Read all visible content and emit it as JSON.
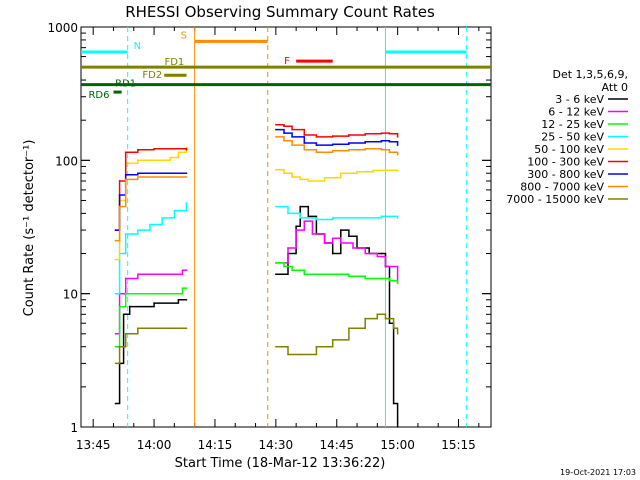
{
  "chart_data": {
    "type": "line",
    "title": "RHESSI Observing Summary Count Rates",
    "xlabel": "Start Time (18-Mar-12 13:36:22)",
    "ylabel": "Count Rate (s⁻¹ detector⁻¹)",
    "yscale": "log",
    "ylim": [
      1,
      1000
    ],
    "xlim_minutes": [
      -18,
      83
    ],
    "x_ticks": [
      {
        "label": "13:45",
        "m": -15
      },
      {
        "label": "14:00",
        "m": 0
      },
      {
        "label": "14:15",
        "m": 15
      },
      {
        "label": "14:30",
        "m": 30
      },
      {
        "label": "14:45",
        "m": 45
      },
      {
        "label": "15:00",
        "m": 60
      },
      {
        "label": "15:15",
        "m": 75
      }
    ],
    "y_ticks": [
      {
        "label": "1",
        "v": 1
      },
      {
        "label": "10",
        "v": 10
      },
      {
        "label": "100",
        "v": 100
      },
      {
        "label": "1000",
        "v": 1000
      }
    ],
    "legend": {
      "placement": "right",
      "title_lines": [
        "Det 1,3,5,6,9,",
        "Att 0"
      ],
      "entries": [
        {
          "label": "3 - 6 keV",
          "color": "#000000"
        },
        {
          "label": "6 - 12 keV",
          "color": "#ff00ff"
        },
        {
          "label": "12 - 25 keV",
          "color": "#00ff00"
        },
        {
          "label": "25 - 50 keV",
          "color": "#00ffff"
        },
        {
          "label": "50 - 100 keV",
          "color": "#ffd700"
        },
        {
          "label": "100 - 300 keV",
          "color": "#ff0000"
        },
        {
          "label": "300 - 800 keV",
          "color": "#0000ff"
        },
        {
          "label": "800 - 7000 keV",
          "color": "#ff8c00"
        },
        {
          "label": "7000 - 15000 keV",
          "color": "#808000"
        }
      ]
    },
    "flag_bars": [
      {
        "label": "N",
        "color": "#00ffff",
        "y": 650,
        "segments": [
          [
            -18,
            -6.5
          ],
          [
            57,
            77
          ]
        ]
      },
      {
        "label": "S",
        "color": "#ff8c00",
        "y": 780,
        "segments": [
          [
            10,
            28
          ]
        ]
      },
      {
        "label": "F",
        "color": "#ff0000",
        "y": 555,
        "segments": [
          [
            35,
            44
          ]
        ]
      },
      {
        "label": "FD1",
        "color": "#808000",
        "y": 500,
        "segments": [
          [
            -18,
            83
          ]
        ]
      },
      {
        "label": "FD2",
        "color": "#808000",
        "y": 435,
        "segments": [
          [
            2.5,
            8
          ]
        ]
      },
      {
        "label": "RD1",
        "color": "#006400",
        "y": 370,
        "segments": [
          [
            -18,
            83
          ]
        ]
      },
      {
        "label": "RD6",
        "color": "#006400",
        "y": 325,
        "segments": [
          [
            -10,
            -8
          ]
        ]
      }
    ],
    "vertical_markers": [
      {
        "color": "#00ffff",
        "style": "dashed",
        "x": -6.5
      },
      {
        "color": "#ff8c00",
        "style": "solid",
        "x": 10
      },
      {
        "color": "#ff8c00",
        "style": "dashed",
        "x": 28
      },
      {
        "color": "#00ffff",
        "style": "solid",
        "x": 57
      },
      {
        "color": "#00ffff",
        "style": "dashed",
        "x": 77
      }
    ],
    "series": [
      {
        "name": "3 - 6 keV",
        "color": "#000000",
        "segments": [
          [
            [
              -9.5,
              1.5
            ],
            [
              -8.5,
              3
            ],
            [
              -7.5,
              7
            ],
            [
              -6,
              8
            ],
            [
              0,
              8.5
            ],
            [
              6,
              9
            ],
            [
              8,
              9
            ]
          ],
          [
            [
              30,
              14
            ],
            [
              33,
              20
            ],
            [
              35,
              32
            ],
            [
              36,
              45
            ],
            [
              38,
              38
            ],
            [
              40,
              28
            ],
            [
              42,
              24
            ],
            [
              44,
              20
            ],
            [
              46,
              30
            ],
            [
              48,
              27
            ],
            [
              50,
              22
            ],
            [
              53,
              20
            ],
            [
              56,
              20
            ],
            [
              57,
              16
            ],
            [
              58,
              6
            ],
            [
              59,
              1.5
            ],
            [
              60,
              1
            ]
          ]
        ]
      },
      {
        "name": "6 - 12 keV",
        "color": "#ff00ff",
        "segments": [
          [
            [
              -9.5,
              5
            ],
            [
              -8.5,
              10
            ],
            [
              -7,
              13
            ],
            [
              -4,
              14
            ],
            [
              0,
              14
            ],
            [
              4,
              14
            ],
            [
              7,
              15
            ],
            [
              8,
              15
            ]
          ],
          [
            [
              30,
              17
            ],
            [
              33,
              22
            ],
            [
              35,
              30
            ],
            [
              37,
              35
            ],
            [
              39,
              28
            ],
            [
              42,
              24
            ],
            [
              44,
              26
            ],
            [
              46,
              24
            ],
            [
              49,
              22
            ],
            [
              52,
              20
            ],
            [
              55,
              19
            ],
            [
              57,
              16
            ],
            [
              60,
              12
            ]
          ]
        ]
      },
      {
        "name": "12 - 25 keV",
        "color": "#00ff00",
        "segments": [
          [
            [
              -9.5,
              4
            ],
            [
              -8.5,
              8
            ],
            [
              -7,
              10
            ],
            [
              -4,
              10
            ],
            [
              0,
              10
            ],
            [
              4,
              10
            ],
            [
              7,
              11
            ],
            [
              8,
              11
            ]
          ],
          [
            [
              30,
              17
            ],
            [
              32,
              16
            ],
            [
              34,
              15
            ],
            [
              37,
              14
            ],
            [
              40,
              14
            ],
            [
              44,
              14
            ],
            [
              48,
              13.5
            ],
            [
              52,
              13
            ],
            [
              56,
              13
            ],
            [
              58,
              12.5
            ],
            [
              60,
              12
            ]
          ]
        ]
      },
      {
        "name": "25 - 50 keV",
        "color": "#00ffff",
        "segments": [
          [
            [
              -9.5,
              10
            ],
            [
              -8.5,
              20
            ],
            [
              -7,
              28
            ],
            [
              -4,
              30
            ],
            [
              -1,
              33
            ],
            [
              2,
              37
            ],
            [
              5,
              42
            ],
            [
              8,
              48
            ]
          ],
          [
            [
              30,
              45
            ],
            [
              33,
              40
            ],
            [
              36,
              37
            ],
            [
              40,
              36
            ],
            [
              44,
              37
            ],
            [
              48,
              37
            ],
            [
              52,
              37
            ],
            [
              56,
              38
            ],
            [
              58,
              38
            ],
            [
              60,
              37
            ]
          ]
        ]
      },
      {
        "name": "50 - 100 keV",
        "color": "#ffd700",
        "segments": [
          [
            [
              -9.5,
              18
            ],
            [
              -8.5,
              50
            ],
            [
              -7,
              95
            ],
            [
              -4,
              100
            ],
            [
              0,
              100
            ],
            [
              4,
              105
            ],
            [
              6,
              115
            ],
            [
              8,
              125
            ]
          ],
          [
            [
              30,
              85
            ],
            [
              32,
              80
            ],
            [
              34,
              75
            ],
            [
              36,
              72
            ],
            [
              38,
              70
            ],
            [
              42,
              74
            ],
            [
              46,
              80
            ],
            [
              50,
              82
            ],
            [
              54,
              84
            ],
            [
              58,
              84
            ],
            [
              60,
              83
            ]
          ]
        ]
      },
      {
        "name": "100 - 300 keV",
        "color": "#ff0000",
        "segments": [
          [
            [
              -9.5,
              30
            ],
            [
              -8.5,
              70
            ],
            [
              -7,
              115
            ],
            [
              -4,
              120
            ],
            [
              0,
              122
            ],
            [
              4,
              122
            ],
            [
              8,
              120
            ]
          ],
          [
            [
              30,
              185
            ],
            [
              32,
              180
            ],
            [
              34,
              170
            ],
            [
              37,
              155
            ],
            [
              40,
              150
            ],
            [
              44,
              152
            ],
            [
              48,
              155
            ],
            [
              52,
              158
            ],
            [
              56,
              160
            ],
            [
              58,
              158
            ],
            [
              60,
              150
            ]
          ]
        ]
      },
      {
        "name": "300 - 800 keV",
        "color": "#0000ff",
        "segments": [
          [
            [
              -9.5,
              30
            ],
            [
              -8.5,
              55
            ],
            [
              -7,
              78
            ],
            [
              -4,
              80
            ],
            [
              0,
              80
            ],
            [
              4,
              80
            ],
            [
              8,
              80
            ]
          ],
          [
            [
              30,
              170
            ],
            [
              32,
              160
            ],
            [
              34,
              150
            ],
            [
              37,
              135
            ],
            [
              40,
              130
            ],
            [
              44,
              132
            ],
            [
              48,
              135
            ],
            [
              52,
              138
            ],
            [
              56,
              140
            ],
            [
              58,
              138
            ],
            [
              60,
              130
            ]
          ]
        ]
      },
      {
        "name": "800 - 7000 keV",
        "color": "#ff8c00",
        "segments": [
          [
            [
              -9.5,
              25
            ],
            [
              -8.5,
              45
            ],
            [
              -7,
              72
            ],
            [
              -4,
              75
            ],
            [
              0,
              75
            ],
            [
              4,
              75
            ],
            [
              8,
              75
            ]
          ],
          [
            [
              30,
              150
            ],
            [
              32,
              140
            ],
            [
              34,
              130
            ],
            [
              37,
              120
            ],
            [
              40,
              115
            ],
            [
              44,
              118
            ],
            [
              48,
              120
            ],
            [
              52,
              122
            ],
            [
              56,
              120
            ],
            [
              58,
              115
            ],
            [
              60,
              110
            ]
          ]
        ]
      },
      {
        "name": "7000 - 15000 keV",
        "color": "#808000",
        "segments": [
          [
            [
              -9.5,
              3
            ],
            [
              -8.5,
              4
            ],
            [
              -7,
              5
            ],
            [
              -4,
              5.5
            ],
            [
              0,
              5.5
            ],
            [
              4,
              5.5
            ],
            [
              8,
              5.5
            ]
          ],
          [
            [
              30,
              4
            ],
            [
              33,
              3.5
            ],
            [
              36,
              3.5
            ],
            [
              40,
              4
            ],
            [
              44,
              4.5
            ],
            [
              48,
              5.5
            ],
            [
              52,
              6.5
            ],
            [
              55,
              7
            ],
            [
              57,
              6.5
            ],
            [
              59,
              5.5
            ],
            [
              60,
              5
            ]
          ]
        ]
      }
    ],
    "gap_minutes": [
      8.5,
      29.5
    ]
  },
  "footer": {
    "timestamp": "19-Oct-2021 17:03"
  }
}
